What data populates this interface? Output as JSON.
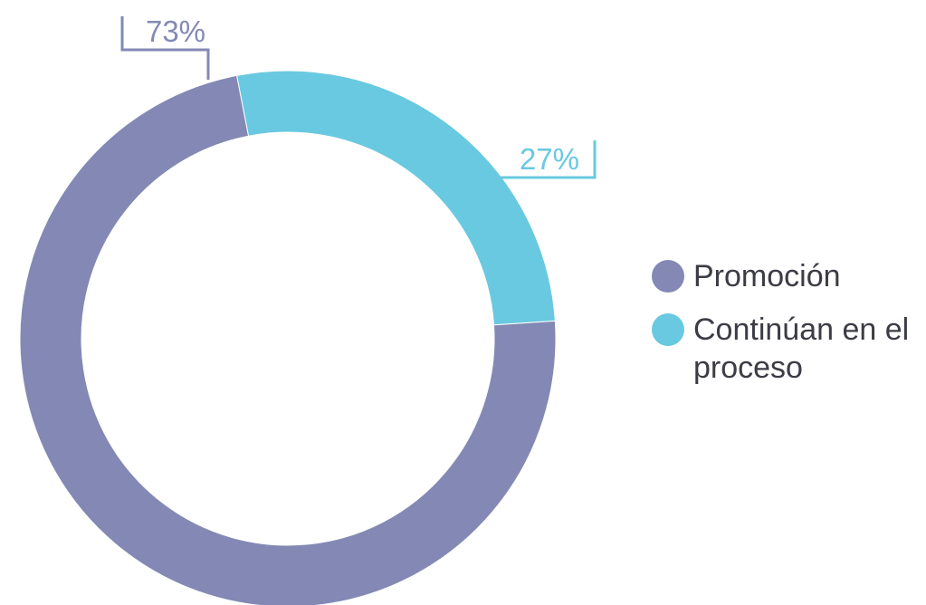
{
  "chart_data": {
    "type": "pie",
    "variant": "donut",
    "title": "",
    "slices": [
      {
        "label": "Promoción",
        "value": 73,
        "display": "73%",
        "color": "#8389b4"
      },
      {
        "label": "Continúan en el proceso",
        "value": 27,
        "display": "27%",
        "color": "#69c9e0"
      }
    ],
    "legend": {
      "placement": "right",
      "items": [
        {
          "label": "Promoción",
          "color": "#8389b4"
        },
        {
          "label": "Continúan en el proceso",
          "color": "#69c9e0"
        }
      ]
    }
  }
}
